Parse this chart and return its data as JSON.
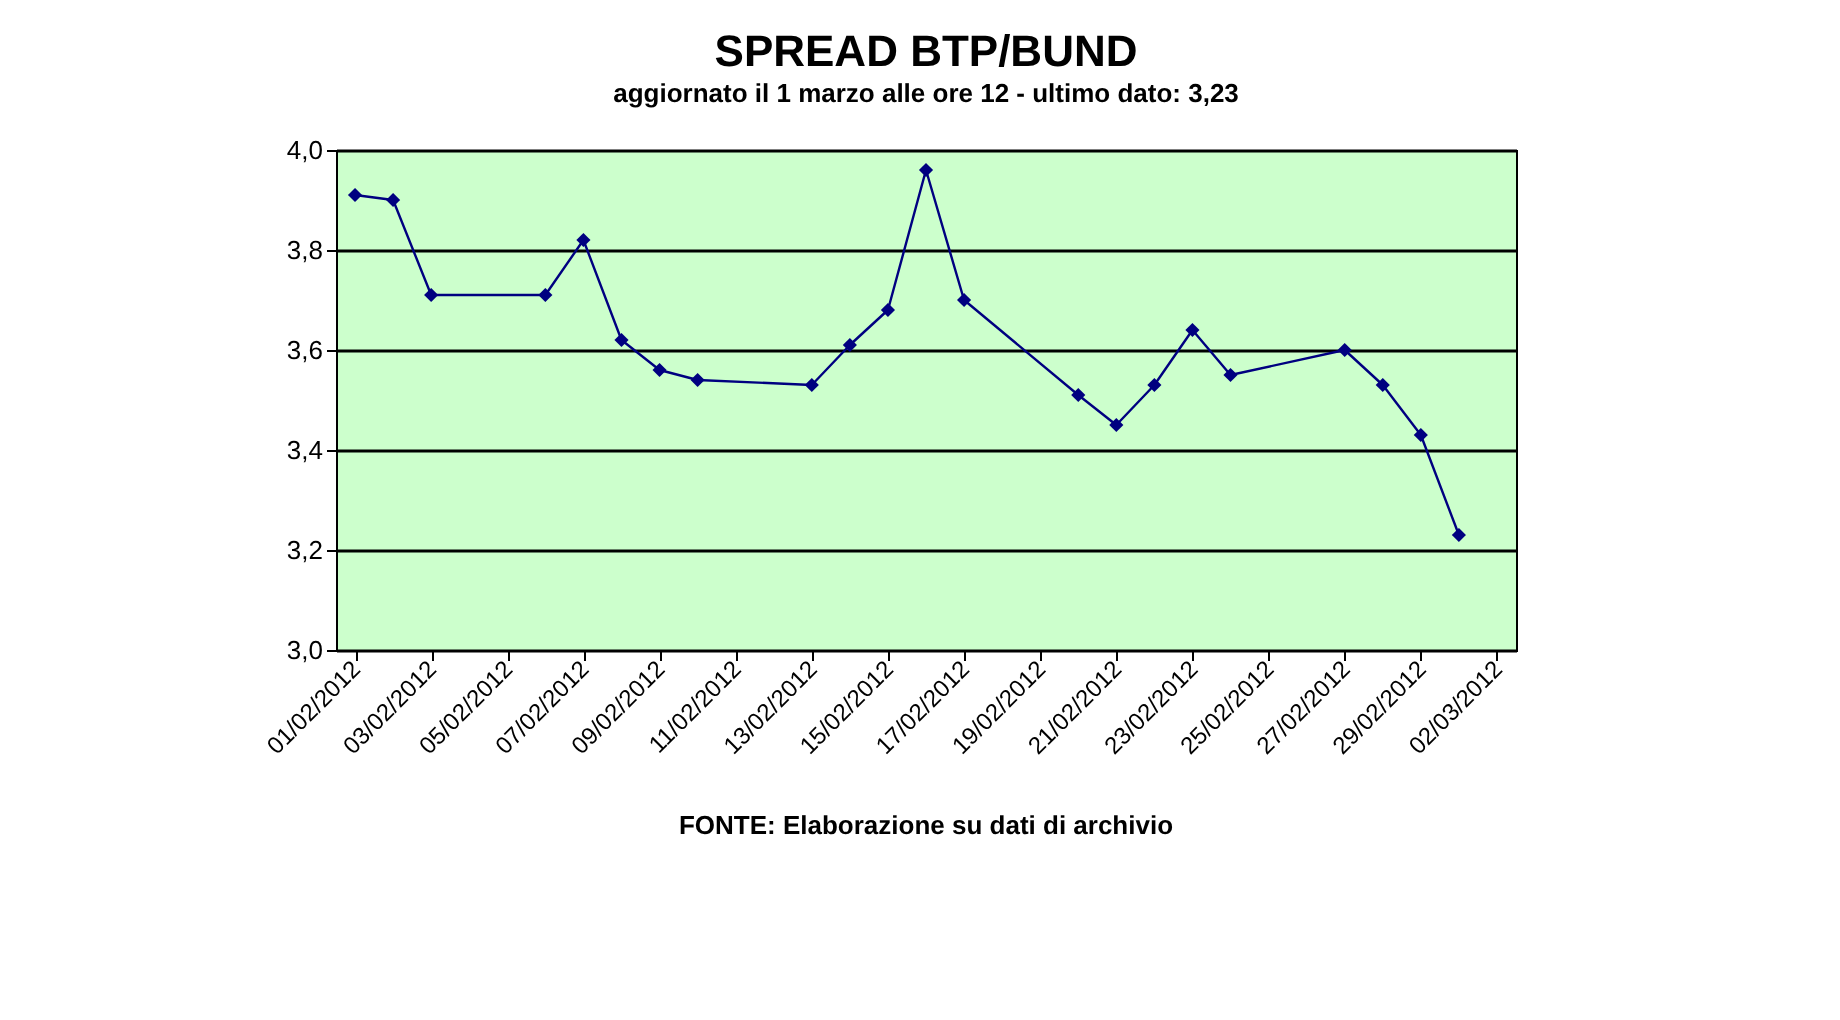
{
  "chart_data": {
    "type": "line",
    "title": "SPREAD BTP/BUND",
    "subtitle": "aggiornato il 1 marzo alle ore 12 - ultimo dato: 3,23",
    "x": [
      "2012-02-01",
      "2012-02-02",
      "2012-02-03",
      "2012-02-06",
      "2012-02-07",
      "2012-02-08",
      "2012-02-09",
      "2012-02-10",
      "2012-02-13",
      "2012-02-14",
      "2012-02-15",
      "2012-02-16",
      "2012-02-17",
      "2012-02-20",
      "2012-02-21",
      "2012-02-22",
      "2012-02-23",
      "2012-02-24",
      "2012-02-27",
      "2012-02-28",
      "2012-02-29",
      "2012-03-01"
    ],
    "series": [
      {
        "color": "#000080",
        "values": [
          3.91,
          3.9,
          3.71,
          3.71,
          3.82,
          3.62,
          3.56,
          3.54,
          3.53,
          3.61,
          3.68,
          3.96,
          3.7,
          3.51,
          3.45,
          3.53,
          3.64,
          3.55,
          3.6,
          3.53,
          3.43,
          3.23
        ]
      }
    ],
    "xlim": [
      "2012-01-31T12:00",
      "2012-03-02T12:00"
    ],
    "xticks": [
      {
        "value": "2012-02-01",
        "label": "01/02/2012"
      },
      {
        "value": "2012-02-03",
        "label": "03/02/2012"
      },
      {
        "value": "2012-02-05",
        "label": "05/02/2012"
      },
      {
        "value": "2012-02-07",
        "label": "07/02/2012"
      },
      {
        "value": "2012-02-09",
        "label": "09/02/2012"
      },
      {
        "value": "2012-02-11",
        "label": "11/02/2012"
      },
      {
        "value": "2012-02-13",
        "label": "13/02/2012"
      },
      {
        "value": "2012-02-15",
        "label": "15/02/2012"
      },
      {
        "value": "2012-02-17",
        "label": "17/02/2012"
      },
      {
        "value": "2012-02-19",
        "label": "19/02/2012"
      },
      {
        "value": "2012-02-21",
        "label": "21/02/2012"
      },
      {
        "value": "2012-02-23",
        "label": "23/02/2012"
      },
      {
        "value": "2012-02-25",
        "label": "25/02/2012"
      },
      {
        "value": "2012-02-27",
        "label": "27/02/2012"
      },
      {
        "value": "2012-02-29",
        "label": "29/02/2012"
      },
      {
        "value": "2012-03-02",
        "label": "02/03/2012"
      }
    ],
    "ylim": [
      3.0,
      4.0
    ],
    "yticks": [
      {
        "value": 3.0,
        "label": "3,0"
      },
      {
        "value": 3.2,
        "label": "3,2"
      },
      {
        "value": 3.4,
        "label": "3,4"
      },
      {
        "value": 3.6,
        "label": "3,6"
      },
      {
        "value": 3.8,
        "label": "3,8"
      },
      {
        "value": 4.0,
        "label": "4,0"
      }
    ],
    "grid": "y",
    "marker": "diamond",
    "line_style": "solid",
    "annotations": [
      "FONTE: Elaborazione su dati di archivio"
    ]
  }
}
